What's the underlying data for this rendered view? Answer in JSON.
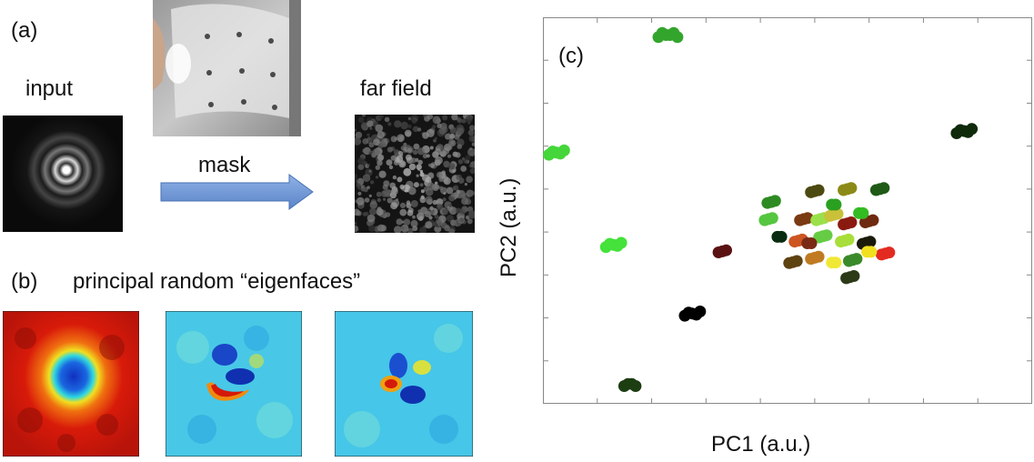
{
  "panel_a": {
    "label": "(a)",
    "input_label": "input",
    "mask_label": "mask",
    "far_field_label": "far field"
  },
  "panel_b": {
    "label": "(b)",
    "title": "principal random “eigenfaces”"
  },
  "panel_c": {
    "label": "(c)"
  },
  "chart_data": {
    "type": "scatter",
    "xlabel": "PC1 (a.u.)",
    "ylabel": "PC2 (a.u.)",
    "xlim": [
      0,
      9
    ],
    "ylim": [
      0,
      9
    ],
    "grid": false,
    "x_ticks": 8,
    "y_ticks": 8,
    "clusters": [
      {
        "x": 2.3,
        "y": 8.6,
        "color": "#33a52c",
        "n": 6
      },
      {
        "x": 0.25,
        "y": 5.85,
        "color": "#44d63a",
        "n": 5
      },
      {
        "x": 1.3,
        "y": 3.7,
        "color": "#44e23a",
        "n": 5
      },
      {
        "x": 2.75,
        "y": 2.1,
        "color": "#000000",
        "n": 5
      },
      {
        "x": 1.6,
        "y": 0.45,
        "color": "#1d3d12",
        "n": 4
      },
      {
        "x": 7.75,
        "y": 6.35,
        "color": "#0f2a0b",
        "n": 5
      },
      {
        "x": 3.3,
        "y": 3.55,
        "color": "#5a1212",
        "n": 3
      },
      {
        "x": 6.2,
        "y": 5.0,
        "color": "#1f5a16",
        "n": 3
      },
      {
        "x": 5.0,
        "y": 4.95,
        "color": "#4c4a10",
        "n": 3
      },
      {
        "x": 5.6,
        "y": 5.0,
        "color": "#8c8a16",
        "n": 3
      },
      {
        "x": 4.2,
        "y": 4.7,
        "color": "#2e8a22",
        "n": 3
      },
      {
        "x": 4.15,
        "y": 4.3,
        "color": "#55c640",
        "n": 3
      },
      {
        "x": 4.8,
        "y": 4.3,
        "color": "#7a3a12",
        "n": 3
      },
      {
        "x": 5.1,
        "y": 4.3,
        "color": "#9ae04a",
        "n": 3
      },
      {
        "x": 5.35,
        "y": 4.4,
        "color": "#c9c13a",
        "n": 3
      },
      {
        "x": 5.6,
        "y": 4.2,
        "color": "#8a1a10",
        "n": 3
      },
      {
        "x": 6.0,
        "y": 4.25,
        "color": "#6e2a10",
        "n": 3
      },
      {
        "x": 4.35,
        "y": 3.9,
        "color": "#0a2b10",
        "n": 2
      },
      {
        "x": 4.7,
        "y": 3.8,
        "color": "#cc5522",
        "n": 3
      },
      {
        "x": 5.15,
        "y": 3.9,
        "color": "#66cc44",
        "n": 3
      },
      {
        "x": 5.55,
        "y": 3.8,
        "color": "#a8de3a",
        "n": 3
      },
      {
        "x": 5.95,
        "y": 3.75,
        "color": "#1a1a0a",
        "n": 3
      },
      {
        "x": 6.3,
        "y": 3.5,
        "color": "#e32a20",
        "n": 3
      },
      {
        "x": 6.0,
        "y": 3.55,
        "color": "#f0e020",
        "n": 2
      },
      {
        "x": 4.6,
        "y": 3.3,
        "color": "#5e4210",
        "n": 3
      },
      {
        "x": 5.0,
        "y": 3.4,
        "color": "#c07a22",
        "n": 3
      },
      {
        "x": 5.35,
        "y": 3.3,
        "color": "#f0e836",
        "n": 2
      },
      {
        "x": 5.7,
        "y": 3.35,
        "color": "#3a8a2a",
        "n": 3
      },
      {
        "x": 5.65,
        "y": 2.95,
        "color": "#2c3a18",
        "n": 3
      },
      {
        "x": 4.9,
        "y": 3.75,
        "color": "#7a2a14",
        "n": 2
      },
      {
        "x": 5.35,
        "y": 4.65,
        "color": "#2aa020",
        "n": 2
      },
      {
        "x": 5.85,
        "y": 4.45,
        "color": "#33bb22",
        "n": 2
      }
    ]
  }
}
